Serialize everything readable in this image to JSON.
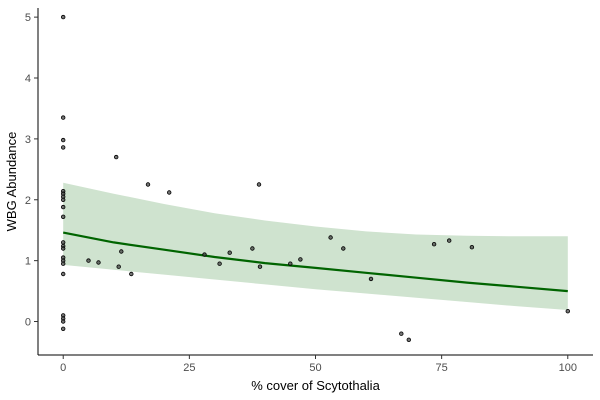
{
  "chart_data": {
    "type": "scatter",
    "title": "",
    "xlabel": "% cover of Scytothalia",
    "ylabel": "WBG Abundance",
    "xlim": [
      -5,
      105
    ],
    "ylim": [
      -0.55,
      5.15
    ],
    "x_ticks": [
      0,
      25,
      50,
      75,
      100
    ],
    "y_ticks": [
      0,
      1,
      2,
      3,
      4,
      5
    ],
    "grid": false,
    "legend": "none",
    "colors": {
      "fit_line": "#006400",
      "ribbon": "#cfe3cf",
      "points": "#3a3a3a",
      "axis": "#000000"
    },
    "points": [
      {
        "x": 0,
        "y": 5.0
      },
      {
        "x": 0,
        "y": 3.35
      },
      {
        "x": 0,
        "y": 2.98
      },
      {
        "x": 0,
        "y": 2.86
      },
      {
        "x": 0,
        "y": 2.14
      },
      {
        "x": 0,
        "y": 2.1
      },
      {
        "x": 0,
        "y": 2.05
      },
      {
        "x": 0,
        "y": 2.0
      },
      {
        "x": 0,
        "y": 1.88
      },
      {
        "x": 0,
        "y": 1.72
      },
      {
        "x": 0,
        "y": 1.3
      },
      {
        "x": 0,
        "y": 1.24
      },
      {
        "x": 0,
        "y": 1.2
      },
      {
        "x": 0,
        "y": 1.05
      },
      {
        "x": 0,
        "y": 1.0
      },
      {
        "x": 0,
        "y": 0.95
      },
      {
        "x": 0,
        "y": 0.78
      },
      {
        "x": 0,
        "y": 0.1
      },
      {
        "x": 0,
        "y": 0.05
      },
      {
        "x": 0,
        "y": 0.0
      },
      {
        "x": 0,
        "y": -0.12
      },
      {
        "x": 5,
        "y": 1.0
      },
      {
        "x": 7,
        "y": 0.97
      },
      {
        "x": 10.5,
        "y": 2.7
      },
      {
        "x": 11,
        "y": 0.9
      },
      {
        "x": 11.5,
        "y": 1.15
      },
      {
        "x": 13.5,
        "y": 0.78
      },
      {
        "x": 16.8,
        "y": 2.25
      },
      {
        "x": 21,
        "y": 2.12
      },
      {
        "x": 28,
        "y": 1.1
      },
      {
        "x": 31,
        "y": 0.95
      },
      {
        "x": 33,
        "y": 1.13
      },
      {
        "x": 37.5,
        "y": 1.2
      },
      {
        "x": 38.8,
        "y": 2.25
      },
      {
        "x": 39,
        "y": 0.9
      },
      {
        "x": 45,
        "y": 0.95
      },
      {
        "x": 47,
        "y": 1.02
      },
      {
        "x": 53,
        "y": 1.38
      },
      {
        "x": 55.5,
        "y": 1.2
      },
      {
        "x": 61,
        "y": 0.7
      },
      {
        "x": 67,
        "y": -0.2
      },
      {
        "x": 68.5,
        "y": -0.3
      },
      {
        "x": 73.5,
        "y": 1.27
      },
      {
        "x": 76.5,
        "y": 1.33
      },
      {
        "x": 81,
        "y": 1.22
      },
      {
        "x": 100,
        "y": 0.17
      }
    ],
    "fit": {
      "x": [
        0,
        10,
        20,
        30,
        40,
        50,
        60,
        70,
        80,
        90,
        100
      ],
      "y": [
        1.46,
        1.3,
        1.18,
        1.06,
        0.96,
        0.88,
        0.8,
        0.72,
        0.64,
        0.57,
        0.5
      ],
      "lower": [
        0.93,
        0.85,
        0.77,
        0.69,
        0.61,
        0.53,
        0.46,
        0.39,
        0.32,
        0.25,
        0.19
      ],
      "upper": [
        2.28,
        2.1,
        1.93,
        1.78,
        1.66,
        1.56,
        1.48,
        1.43,
        1.41,
        1.4,
        1.4
      ]
    }
  }
}
